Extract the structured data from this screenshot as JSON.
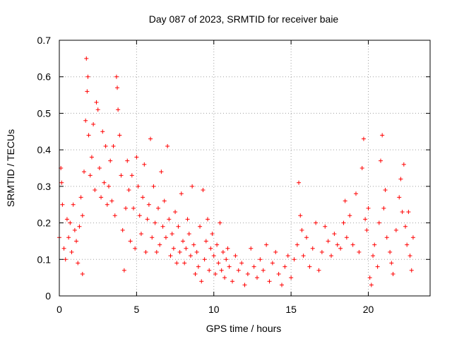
{
  "chart_data": {
    "type": "scatter",
    "title": "Day 087 of 2023, SRMTID for receiver baie",
    "xlabel": "GPS time / hours",
    "ylabel": "SRMTID / TECUs",
    "xlim": [
      0,
      24
    ],
    "ylim": [
      0,
      0.7
    ],
    "xticks": [
      0,
      5,
      10,
      15,
      20
    ],
    "yticks": [
      0,
      0.1,
      0.2,
      0.3,
      0.4,
      0.5,
      0.6,
      0.7
    ],
    "grid": true,
    "marker": "+",
    "color": "#ff0000",
    "series": [
      {
        "name": "baie",
        "points": [
          [
            0.0,
            0.16
          ],
          [
            0.1,
            0.35
          ],
          [
            0.15,
            0.31
          ],
          [
            0.2,
            0.25
          ],
          [
            0.3,
            0.13
          ],
          [
            0.4,
            0.1
          ],
          [
            0.5,
            0.21
          ],
          [
            0.6,
            0.16
          ],
          [
            0.7,
            0.2
          ],
          [
            0.8,
            0.12
          ],
          [
            0.9,
            0.25
          ],
          [
            1.0,
            0.18
          ],
          [
            1.1,
            0.15
          ],
          [
            1.2,
            0.09
          ],
          [
            1.3,
            0.19
          ],
          [
            1.4,
            0.27
          ],
          [
            1.5,
            0.06
          ],
          [
            1.5,
            0.22
          ],
          [
            1.6,
            0.34
          ],
          [
            1.7,
            0.48
          ],
          [
            1.75,
            0.65
          ],
          [
            1.8,
            0.56
          ],
          [
            1.85,
            0.6
          ],
          [
            1.9,
            0.44
          ],
          [
            2.0,
            0.33
          ],
          [
            2.1,
            0.38
          ],
          [
            2.2,
            0.47
          ],
          [
            2.3,
            0.29
          ],
          [
            2.4,
            0.53
          ],
          [
            2.5,
            0.51
          ],
          [
            2.6,
            0.35
          ],
          [
            2.7,
            0.27
          ],
          [
            2.8,
            0.45
          ],
          [
            2.9,
            0.31
          ],
          [
            3.0,
            0.41
          ],
          [
            3.1,
            0.25
          ],
          [
            3.2,
            0.3
          ],
          [
            3.3,
            0.37
          ],
          [
            3.4,
            0.26
          ],
          [
            3.5,
            0.41
          ],
          [
            3.6,
            0.22
          ],
          [
            3.7,
            0.6
          ],
          [
            3.75,
            0.57
          ],
          [
            3.8,
            0.51
          ],
          [
            3.9,
            0.44
          ],
          [
            4.0,
            0.33
          ],
          [
            4.1,
            0.18
          ],
          [
            4.2,
            0.07
          ],
          [
            4.3,
            0.24
          ],
          [
            4.4,
            0.37
          ],
          [
            4.5,
            0.29
          ],
          [
            4.6,
            0.15
          ],
          [
            4.7,
            0.33
          ],
          [
            4.8,
            0.24
          ],
          [
            4.9,
            0.13
          ],
          [
            5.0,
            0.38
          ],
          [
            5.1,
            0.3
          ],
          [
            5.2,
            0.22
          ],
          [
            5.3,
            0.17
          ],
          [
            5.4,
            0.27
          ],
          [
            5.5,
            0.36
          ],
          [
            5.6,
            0.12
          ],
          [
            5.7,
            0.21
          ],
          [
            5.8,
            0.25
          ],
          [
            5.9,
            0.43
          ],
          [
            6.0,
            0.16
          ],
          [
            6.1,
            0.3
          ],
          [
            6.2,
            0.2
          ],
          [
            6.3,
            0.12
          ],
          [
            6.4,
            0.24
          ],
          [
            6.5,
            0.14
          ],
          [
            6.6,
            0.34
          ],
          [
            6.7,
            0.19
          ],
          [
            6.8,
            0.26
          ],
          [
            6.9,
            0.16
          ],
          [
            7.0,
            0.41
          ],
          [
            7.1,
            0.21
          ],
          [
            7.2,
            0.11
          ],
          [
            7.3,
            0.17
          ],
          [
            7.4,
            0.13
          ],
          [
            7.5,
            0.23
          ],
          [
            7.6,
            0.09
          ],
          [
            7.7,
            0.19
          ],
          [
            7.8,
            0.12
          ],
          [
            7.9,
            0.28
          ],
          [
            8.0,
            0.15
          ],
          [
            8.1,
            0.09
          ],
          [
            8.2,
            0.13
          ],
          [
            8.3,
            0.21
          ],
          [
            8.4,
            0.17
          ],
          [
            8.5,
            0.11
          ],
          [
            8.6,
            0.3
          ],
          [
            8.7,
            0.14
          ],
          [
            8.8,
            0.06
          ],
          [
            8.9,
            0.12
          ],
          [
            9.0,
            0.08
          ],
          [
            9.1,
            0.19
          ],
          [
            9.2,
            0.04
          ],
          [
            9.3,
            0.29
          ],
          [
            9.4,
            0.1
          ],
          [
            9.5,
            0.15
          ],
          [
            9.6,
            0.21
          ],
          [
            9.7,
            0.07
          ],
          [
            9.8,
            0.13
          ],
          [
            9.9,
            0.17
          ],
          [
            10.0,
            0.11
          ],
          [
            10.1,
            0.06
          ],
          [
            10.2,
            0.14
          ],
          [
            10.3,
            0.09
          ],
          [
            10.4,
            0.2
          ],
          [
            10.5,
            0.07
          ],
          [
            10.6,
            0.12
          ],
          [
            10.7,
            0.05
          ],
          [
            10.8,
            0.1
          ],
          [
            10.9,
            0.13
          ],
          [
            11.0,
            0.08
          ],
          [
            11.2,
            0.04
          ],
          [
            11.4,
            0.11
          ],
          [
            11.6,
            0.07
          ],
          [
            11.8,
            0.09
          ],
          [
            12.0,
            0.03
          ],
          [
            12.2,
            0.06
          ],
          [
            12.4,
            0.13
          ],
          [
            12.6,
            0.08
          ],
          [
            12.8,
            0.05
          ],
          [
            13.0,
            0.1
          ],
          [
            13.2,
            0.07
          ],
          [
            13.4,
            0.14
          ],
          [
            13.6,
            0.04
          ],
          [
            13.8,
            0.09
          ],
          [
            14.0,
            0.12
          ],
          [
            14.2,
            0.06
          ],
          [
            14.4,
            0.03
          ],
          [
            14.6,
            0.08
          ],
          [
            14.8,
            0.11
          ],
          [
            15.0,
            0.05
          ],
          [
            15.2,
            0.1
          ],
          [
            15.4,
            0.14
          ],
          [
            15.5,
            0.31
          ],
          [
            15.6,
            0.22
          ],
          [
            15.7,
            0.18
          ],
          [
            15.8,
            0.11
          ],
          [
            16.0,
            0.16
          ],
          [
            16.2,
            0.08
          ],
          [
            16.4,
            0.13
          ],
          [
            16.6,
            0.2
          ],
          [
            16.8,
            0.07
          ],
          [
            17.0,
            0.12
          ],
          [
            17.2,
            0.19
          ],
          [
            17.4,
            0.15
          ],
          [
            17.6,
            0.11
          ],
          [
            17.8,
            0.17
          ],
          [
            18.0,
            0.14
          ],
          [
            18.2,
            0.13
          ],
          [
            18.4,
            0.2
          ],
          [
            18.5,
            0.26
          ],
          [
            18.6,
            0.16
          ],
          [
            18.8,
            0.22
          ],
          [
            19.0,
            0.14
          ],
          [
            19.2,
            0.28
          ],
          [
            19.4,
            0.12
          ],
          [
            19.6,
            0.35
          ],
          [
            19.7,
            0.43
          ],
          [
            19.8,
            0.21
          ],
          [
            19.9,
            0.18
          ],
          [
            20.0,
            0.24
          ],
          [
            20.1,
            0.05
          ],
          [
            20.2,
            0.03
          ],
          [
            20.3,
            0.11
          ],
          [
            20.4,
            0.14
          ],
          [
            20.6,
            0.08
          ],
          [
            20.7,
            0.2
          ],
          [
            20.8,
            0.37
          ],
          [
            20.9,
            0.44
          ],
          [
            21.0,
            0.24
          ],
          [
            21.1,
            0.29
          ],
          [
            21.2,
            0.16
          ],
          [
            21.4,
            0.12
          ],
          [
            21.5,
            0.09
          ],
          [
            21.6,
            0.06
          ],
          [
            21.8,
            0.18
          ],
          [
            22.0,
            0.27
          ],
          [
            22.1,
            0.32
          ],
          [
            22.2,
            0.23
          ],
          [
            22.3,
            0.36
          ],
          [
            22.4,
            0.19
          ],
          [
            22.5,
            0.14
          ],
          [
            22.6,
            0.23
          ],
          [
            22.7,
            0.11
          ],
          [
            22.8,
            0.07
          ],
          [
            22.9,
            0.16
          ]
        ]
      }
    ]
  }
}
